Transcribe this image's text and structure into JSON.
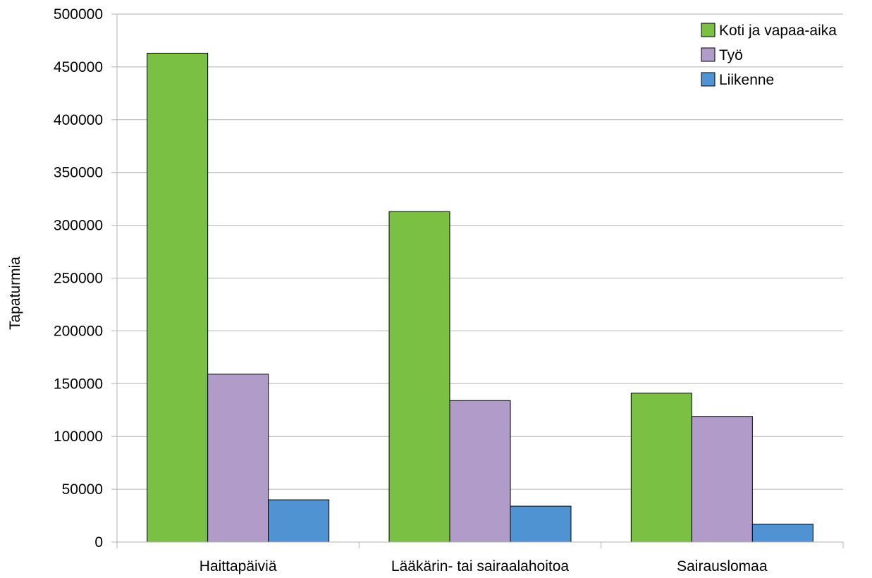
{
  "chart_data": {
    "type": "bar",
    "title": "",
    "xlabel": "",
    "ylabel": "Tapaturmia",
    "categories": [
      "Haittapäiviä",
      "Lääkärin- tai sairaalahoitoa",
      "Sairauslomaa"
    ],
    "series": [
      {
        "name": "Koti ja vapaa-aika",
        "color": "#7ac143",
        "values": [
          463000,
          313000,
          141000
        ]
      },
      {
        "name": "Työ",
        "color": "#b19cc9",
        "values": [
          159000,
          134000,
          119000
        ]
      },
      {
        "name": "Liikenne",
        "color": "#4f93d2",
        "values": [
          40000,
          34000,
          17000
        ]
      }
    ],
    "ylim": [
      0,
      500000
    ],
    "yticks": [
      0,
      50000,
      100000,
      150000,
      200000,
      250000,
      300000,
      350000,
      400000,
      450000,
      500000
    ],
    "ytick_labels": [
      "0",
      "50000",
      "100000",
      "150000",
      "200000",
      "250000",
      "300000",
      "350000",
      "400000",
      "450000",
      "500000"
    ],
    "grid": true,
    "legend_position": "top-right"
  }
}
